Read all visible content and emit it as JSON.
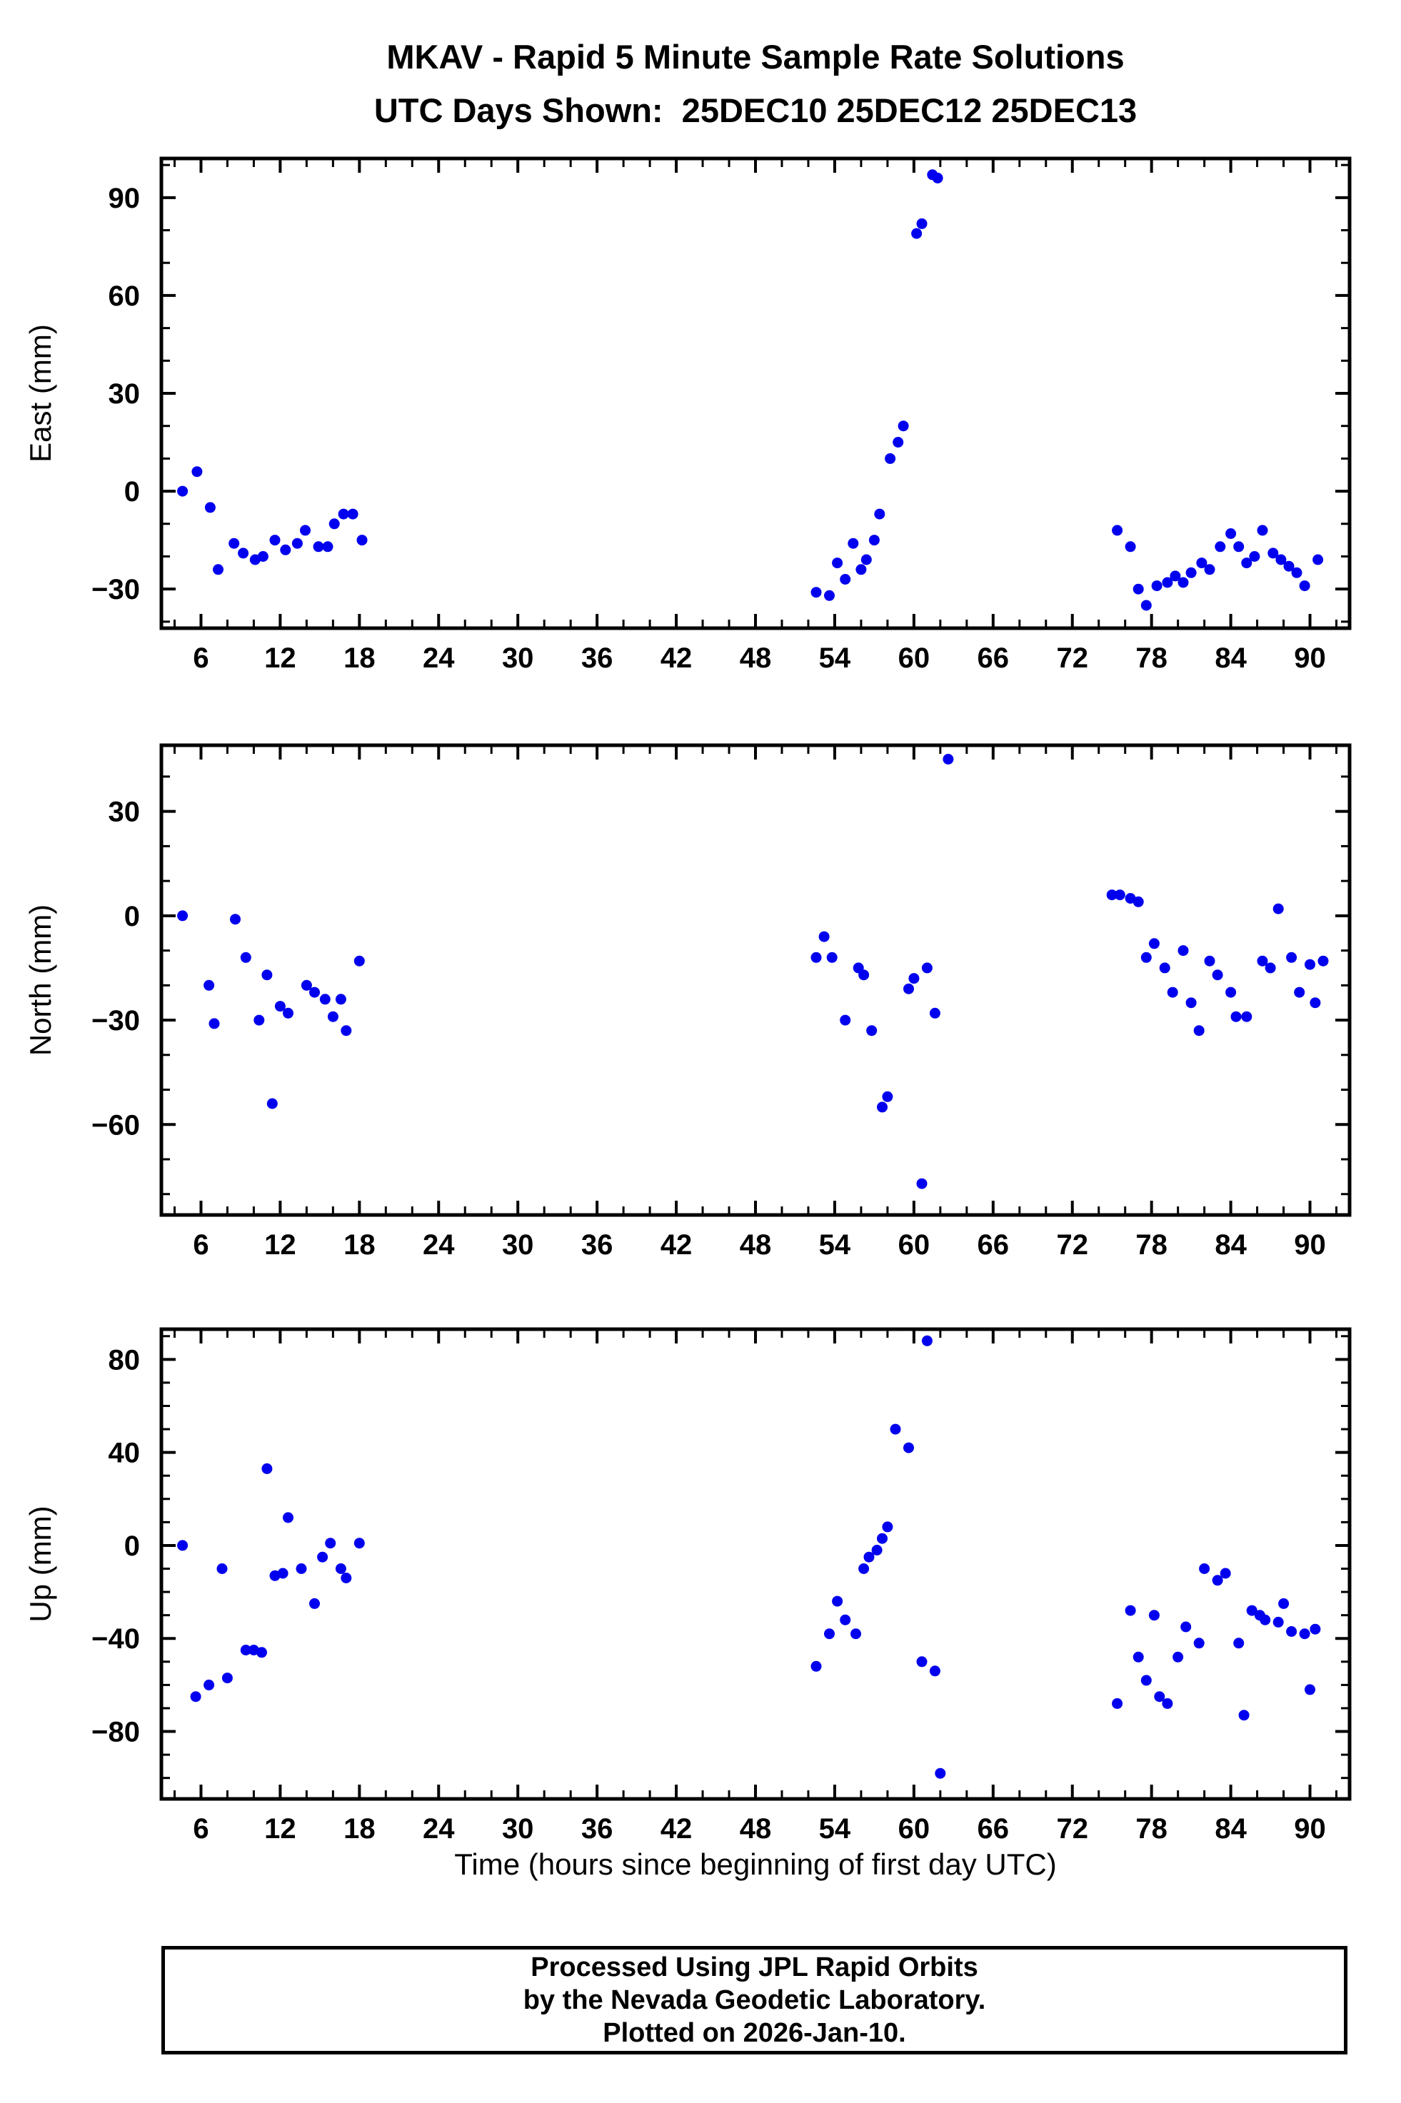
{
  "title": {
    "line1": "MKAV - Rapid 5 Minute Sample Rate Solutions",
    "line2": "UTC Days Shown:  25DEC10 25DEC12 25DEC13"
  },
  "xlabel": "Time (hours since beginning of first day UTC)",
  "footer": {
    "line1": "Processed Using JPL Rapid Orbits",
    "line2": "by the Nevada Geodetic Laboratory.",
    "line3": "Plotted on 2026-Jan-10."
  },
  "point_color": "#0000ee",
  "chart_data": [
    {
      "type": "scatter",
      "id": "east",
      "ylabel": "East (mm)",
      "xlim": [
        3,
        93
      ],
      "ylim": [
        -42,
        102
      ],
      "xticks": [
        6,
        12,
        18,
        24,
        30,
        36,
        42,
        48,
        54,
        60,
        66,
        72,
        78,
        84,
        90
      ],
      "yticks": [
        -30,
        0,
        30,
        60,
        90
      ],
      "x_minor": 2,
      "y_minor": 10,
      "grid": false,
      "points": [
        [
          4.6,
          0
        ],
        [
          5.7,
          6
        ],
        [
          6.7,
          -5
        ],
        [
          7.3,
          -24
        ],
        [
          8.5,
          -16
        ],
        [
          9.2,
          -19
        ],
        [
          10.1,
          -21
        ],
        [
          10.7,
          -20
        ],
        [
          11.6,
          -15
        ],
        [
          12.4,
          -18
        ],
        [
          13.3,
          -16
        ],
        [
          13.9,
          -12
        ],
        [
          14.9,
          -17
        ],
        [
          15.6,
          -17
        ],
        [
          16.1,
          -10
        ],
        [
          16.8,
          -7
        ],
        [
          17.5,
          -7
        ],
        [
          18.2,
          -15
        ],
        [
          52.6,
          -31
        ],
        [
          53.6,
          -32
        ],
        [
          54.2,
          -22
        ],
        [
          54.8,
          -27
        ],
        [
          55.4,
          -16
        ],
        [
          56.0,
          -24
        ],
        [
          56.4,
          -21
        ],
        [
          57.0,
          -15
        ],
        [
          57.4,
          -7
        ],
        [
          58.2,
          10
        ],
        [
          58.8,
          15
        ],
        [
          59.2,
          20
        ],
        [
          60.2,
          79
        ],
        [
          60.6,
          82
        ],
        [
          61.4,
          97
        ],
        [
          61.8,
          96
        ],
        [
          75.4,
          -12
        ],
        [
          76.4,
          -17
        ],
        [
          77.0,
          -30
        ],
        [
          77.6,
          -35
        ],
        [
          78.4,
          -29
        ],
        [
          79.2,
          -28
        ],
        [
          79.8,
          -26
        ],
        [
          80.4,
          -28
        ],
        [
          81.0,
          -25
        ],
        [
          81.8,
          -22
        ],
        [
          82.4,
          -24
        ],
        [
          83.2,
          -17
        ],
        [
          84.0,
          -13
        ],
        [
          84.6,
          -17
        ],
        [
          85.2,
          -22
        ],
        [
          85.8,
          -20
        ],
        [
          86.4,
          -12
        ],
        [
          87.2,
          -19
        ],
        [
          87.8,
          -21
        ],
        [
          88.4,
          -23
        ],
        [
          89.0,
          -25
        ],
        [
          89.6,
          -29
        ],
        [
          90.6,
          -21
        ]
      ]
    },
    {
      "type": "scatter",
      "id": "north",
      "ylabel": "North (mm)",
      "xlim": [
        3,
        93
      ],
      "ylim": [
        -86,
        49
      ],
      "xticks": [
        6,
        12,
        18,
        24,
        30,
        36,
        42,
        48,
        54,
        60,
        66,
        72,
        78,
        84,
        90
      ],
      "yticks": [
        -60,
        -30,
        0,
        30
      ],
      "x_minor": 2,
      "y_minor": 10,
      "grid": false,
      "points": [
        [
          4.6,
          0
        ],
        [
          6.6,
          -20
        ],
        [
          7.0,
          -31
        ],
        [
          8.6,
          -1
        ],
        [
          9.4,
          -12
        ],
        [
          10.4,
          -30
        ],
        [
          11.0,
          -17
        ],
        [
          11.4,
          -54
        ],
        [
          12.0,
          -26
        ],
        [
          12.6,
          -28
        ],
        [
          14.0,
          -20
        ],
        [
          14.6,
          -22
        ],
        [
          15.4,
          -24
        ],
        [
          16.0,
          -29
        ],
        [
          16.6,
          -24
        ],
        [
          17.0,
          -33
        ],
        [
          18.0,
          -13
        ],
        [
          52.6,
          -12
        ],
        [
          53.2,
          -6
        ],
        [
          53.8,
          -12
        ],
        [
          54.8,
          -30
        ],
        [
          55.8,
          -15
        ],
        [
          56.2,
          -17
        ],
        [
          56.8,
          -33
        ],
        [
          57.6,
          -55
        ],
        [
          58.0,
          -52
        ],
        [
          59.6,
          -21
        ],
        [
          60.0,
          -18
        ],
        [
          60.6,
          -77
        ],
        [
          61.0,
          -15
        ],
        [
          61.6,
          -28
        ],
        [
          62.6,
          45
        ],
        [
          75.0,
          6
        ],
        [
          75.6,
          6
        ],
        [
          76.4,
          5
        ],
        [
          77.0,
          4
        ],
        [
          77.6,
          -12
        ],
        [
          78.2,
          -8
        ],
        [
          79.0,
          -15
        ],
        [
          79.6,
          -22
        ],
        [
          80.4,
          -10
        ],
        [
          81.0,
          -25
        ],
        [
          81.6,
          -33
        ],
        [
          82.4,
          -13
        ],
        [
          83.0,
          -17
        ],
        [
          84.0,
          -22
        ],
        [
          84.4,
          -29
        ],
        [
          85.2,
          -29
        ],
        [
          86.4,
          -13
        ],
        [
          87.0,
          -15
        ],
        [
          87.6,
          2
        ],
        [
          88.6,
          -12
        ],
        [
          89.2,
          -22
        ],
        [
          90.0,
          -14
        ],
        [
          90.4,
          -25
        ],
        [
          91.0,
          -13
        ]
      ]
    },
    {
      "type": "scatter",
      "id": "up",
      "ylabel": "Up (mm)",
      "xlim": [
        3,
        93
      ],
      "ylim": [
        -109,
        93
      ],
      "xticks": [
        6,
        12,
        18,
        24,
        30,
        36,
        42,
        48,
        54,
        60,
        66,
        72,
        78,
        84,
        90
      ],
      "yticks": [
        -80,
        -40,
        0,
        40,
        80
      ],
      "x_minor": 2,
      "y_minor": 10,
      "grid": false,
      "points": [
        [
          4.6,
          0
        ],
        [
          5.6,
          -65
        ],
        [
          6.6,
          -60
        ],
        [
          7.6,
          -10
        ],
        [
          8.0,
          -57
        ],
        [
          9.4,
          -45
        ],
        [
          10.0,
          -45
        ],
        [
          10.6,
          -46
        ],
        [
          11.0,
          33
        ],
        [
          11.6,
          -13
        ],
        [
          12.2,
          -12
        ],
        [
          12.6,
          12
        ],
        [
          13.6,
          -10
        ],
        [
          14.6,
          -25
        ],
        [
          15.2,
          -5
        ],
        [
          15.8,
          1
        ],
        [
          16.6,
          -10
        ],
        [
          17.0,
          -14
        ],
        [
          18.0,
          1
        ],
        [
          52.6,
          -52
        ],
        [
          53.6,
          -38
        ],
        [
          54.2,
          -24
        ],
        [
          54.8,
          -32
        ],
        [
          55.6,
          -38
        ],
        [
          56.2,
          -10
        ],
        [
          56.6,
          -5
        ],
        [
          57.2,
          -2
        ],
        [
          57.6,
          3
        ],
        [
          58.0,
          8
        ],
        [
          58.6,
          50
        ],
        [
          59.6,
          42
        ],
        [
          60.6,
          -50
        ],
        [
          61.0,
          88
        ],
        [
          61.6,
          -54
        ],
        [
          62.0,
          -98
        ],
        [
          75.4,
          -68
        ],
        [
          76.4,
          -28
        ],
        [
          77.0,
          -48
        ],
        [
          77.6,
          -58
        ],
        [
          78.2,
          -30
        ],
        [
          78.6,
          -65
        ],
        [
          79.2,
          -68
        ],
        [
          80.0,
          -48
        ],
        [
          80.6,
          -35
        ],
        [
          81.6,
          -42
        ],
        [
          82.0,
          -10
        ],
        [
          83.0,
          -15
        ],
        [
          83.6,
          -12
        ],
        [
          84.6,
          -42
        ],
        [
          85.0,
          -73
        ],
        [
          85.6,
          -28
        ],
        [
          86.2,
          -30
        ],
        [
          86.6,
          -32
        ],
        [
          87.6,
          -33
        ],
        [
          88.0,
          -25
        ],
        [
          88.6,
          -37
        ],
        [
          89.6,
          -38
        ],
        [
          90.0,
          -62
        ],
        [
          90.4,
          -36
        ]
      ]
    }
  ]
}
